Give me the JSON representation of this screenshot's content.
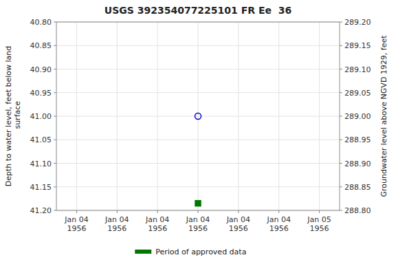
{
  "chart_data": {
    "type": "scatter",
    "title": "USGS 392354077225101 FR Ee  36",
    "y_label": "Depth to water level, feet below land\n surface",
    "y2_label": "Groundwater level above NGVD 1929, feet",
    "categories": [
      "Jan 04\n1956",
      "Jan 04\n1956",
      "Jan 04\n1956",
      "Jan 04\n1956",
      "Jan 04\n1956",
      "Jan 04\n1956",
      "Jan 05\n1956"
    ],
    "series": [
      {
        "color": "#0000cc",
        "marker": "circle-open",
        "values": [
          null,
          null,
          null,
          41.0,
          null,
          null,
          null
        ]
      },
      {
        "name": "Period of approved data",
        "color": "#007700",
        "marker": "square",
        "values": [
          null,
          null,
          null,
          41.185,
          null,
          null,
          null
        ]
      }
    ],
    "ylim": [
      41.2,
      40.8
    ],
    "yticks": [
      {
        "value": 40.8,
        "label": "40.80"
      },
      {
        "value": 40.85,
        "label": "40.85"
      },
      {
        "value": 40.9,
        "label": "40.90"
      },
      {
        "value": 40.95,
        "label": "40.95"
      },
      {
        "value": 41.0,
        "label": "41.00"
      },
      {
        "value": 41.05,
        "label": "41.05"
      },
      {
        "value": 41.1,
        "label": "41.10"
      },
      {
        "value": 41.15,
        "label": "41.15"
      },
      {
        "value": 41.2,
        "label": "41.20"
      }
    ],
    "y2lim": [
      288.8,
      289.2
    ],
    "y2ticks": [
      {
        "value": 289.2,
        "label": "289.20"
      },
      {
        "value": 289.15,
        "label": "289.15"
      },
      {
        "value": 289.1,
        "label": "289.10"
      },
      {
        "value": 289.05,
        "label": "289.05"
      },
      {
        "value": 289.0,
        "label": "289.00"
      },
      {
        "value": 288.95,
        "label": "288.95"
      },
      {
        "value": 288.9,
        "label": "288.90"
      },
      {
        "value": 288.85,
        "label": "288.85"
      },
      {
        "value": 288.8,
        "label": "288.80"
      }
    ],
    "grid": true,
    "legend": "bottom"
  }
}
